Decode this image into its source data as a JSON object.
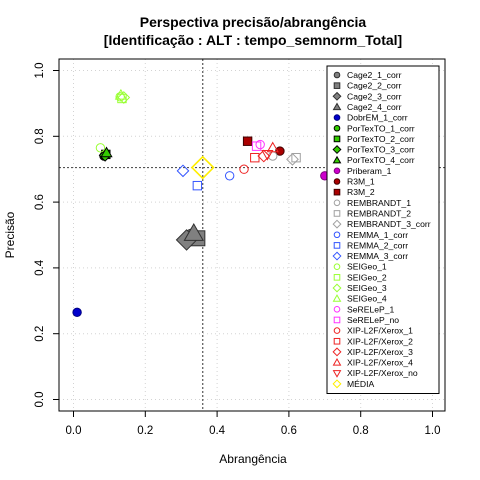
{
  "chart_data": {
    "type": "scatter",
    "title": "Perspectiva precisão/abrangência",
    "subtitle": "[Identificação : ALT : tempo_semnorm_Total]",
    "xlabel": "Abrangência",
    "ylabel": "Precisão",
    "xlim": [
      0,
      1
    ],
    "ylim": [
      0,
      1
    ],
    "x_ticks": [
      "0.0",
      "0.2",
      "0.4",
      "0.6",
      "0.8",
      "1.0"
    ],
    "y_ticks": [
      "0.0",
      "0.2",
      "0.4",
      "0.6",
      "0.8",
      "1.0"
    ],
    "grid": true,
    "legend_position": "top-right",
    "reference_lines": {
      "vertical_x": 0.36,
      "horizontal_y": 0.705
    },
    "series": [
      {
        "name": "Cage2_1_corr",
        "marker": "circle",
        "fill": "#808080",
        "stroke": "#303030",
        "points": [
          [
            0.33,
            0.495
          ]
        ]
      },
      {
        "name": "Cage2_2_corr",
        "marker": "square",
        "fill": "#808080",
        "stroke": "#303030",
        "points": [
          [
            0.345,
            0.49
          ]
        ]
      },
      {
        "name": "Cage2_3_corr",
        "marker": "diamond",
        "fill": "#808080",
        "stroke": "#303030",
        "points": [
          [
            0.315,
            0.485
          ]
        ]
      },
      {
        "name": "Cage2_4_corr",
        "marker": "triangle",
        "fill": "#808080",
        "stroke": "#303030",
        "points": [
          [
            0.335,
            0.505
          ]
        ]
      },
      {
        "name": "DobrEM_1_corr",
        "marker": "circle",
        "fill": "#0000cc",
        "stroke": "#000080",
        "points": [
          [
            0.01,
            0.265
          ]
        ]
      },
      {
        "name": "PorTexTO_1_corr",
        "marker": "circle",
        "fill": "#33cc00",
        "stroke": "#000000",
        "points": [
          [
            0.085,
            0.74
          ]
        ]
      },
      {
        "name": "PorTexTO_2_corr",
        "marker": "square",
        "fill": "#33cc00",
        "stroke": "#000000",
        "points": [
          [
            0.09,
            0.745
          ]
        ]
      },
      {
        "name": "PorTexTO_3_corr",
        "marker": "diamond",
        "fill": "#33cc00",
        "stroke": "#000000",
        "points": [
          [
            0.088,
            0.742
          ]
        ]
      },
      {
        "name": "PorTexTO_4_corr",
        "marker": "triangle",
        "fill": "#33cc00",
        "stroke": "#000000",
        "points": [
          [
            0.092,
            0.75
          ]
        ]
      },
      {
        "name": "Priberam_1",
        "marker": "circle",
        "fill": "#cc00cc",
        "stroke": "#800080",
        "points": [
          [
            0.7,
            0.68
          ]
        ]
      },
      {
        "name": "R3M_1",
        "marker": "circle",
        "fill": "#aa0000",
        "stroke": "#400000",
        "points": [
          [
            0.575,
            0.755
          ]
        ]
      },
      {
        "name": "R3M_2",
        "marker": "square",
        "fill": "#aa0000",
        "stroke": "#400000",
        "points": [
          [
            0.485,
            0.785
          ]
        ]
      },
      {
        "name": "REMBRANDT_1",
        "marker": "open-circle",
        "stroke": "#a0a0a0",
        "points": [
          [
            0.555,
            0.74
          ]
        ]
      },
      {
        "name": "REMBRANDT_2",
        "marker": "open-square",
        "stroke": "#a0a0a0",
        "points": [
          [
            0.62,
            0.735
          ]
        ]
      },
      {
        "name": "REMBRANDT_3_corr",
        "marker": "open-diamond",
        "stroke": "#a0a0a0",
        "points": [
          [
            0.61,
            0.73
          ]
        ]
      },
      {
        "name": "REMMA_1_corr",
        "marker": "open-circle",
        "stroke": "#3355ff",
        "points": [
          [
            0.435,
            0.68
          ]
        ]
      },
      {
        "name": "REMMA_2_corr",
        "marker": "open-square",
        "stroke": "#3355ff",
        "points": [
          [
            0.345,
            0.65
          ]
        ]
      },
      {
        "name": "REMMA_3_corr",
        "marker": "open-diamond",
        "stroke": "#3355ff",
        "points": [
          [
            0.305,
            0.695
          ]
        ]
      },
      {
        "name": "SEIGeo_1",
        "marker": "open-circle",
        "stroke": "#99ff33",
        "points": [
          [
            0.075,
            0.765
          ],
          [
            0.13,
            0.92
          ]
        ]
      },
      {
        "name": "SEIGeo_2",
        "marker": "open-square",
        "stroke": "#99ff33",
        "points": [
          [
            0.135,
            0.915
          ]
        ]
      },
      {
        "name": "SEIGeo_3",
        "marker": "open-diamond",
        "stroke": "#99ff33",
        "points": [
          [
            0.14,
            0.918
          ]
        ]
      },
      {
        "name": "SEIGeo_4",
        "marker": "open-triangle",
        "stroke": "#99ff33",
        "points": [
          [
            0.132,
            0.925
          ]
        ]
      },
      {
        "name": "SeRELeP_1",
        "marker": "open-circle",
        "stroke": "#ff33ff",
        "points": [
          [
            0.52,
            0.775
          ]
        ]
      },
      {
        "name": "SeRELeP_no",
        "marker": "open-square",
        "stroke": "#ff33ff",
        "points": [
          [
            0.51,
            0.77
          ]
        ]
      },
      {
        "name": "XIP-L2F/Xerox_1",
        "marker": "open-circle",
        "stroke": "#ee2222",
        "points": [
          [
            0.475,
            0.7
          ]
        ]
      },
      {
        "name": "XIP-L2F/Xerox_2",
        "marker": "open-square",
        "stroke": "#ee2222",
        "points": [
          [
            0.505,
            0.735
          ]
        ]
      },
      {
        "name": "XIP-L2F/Xerox_3",
        "marker": "open-diamond",
        "stroke": "#ee2222",
        "points": [
          [
            0.53,
            0.74
          ]
        ]
      },
      {
        "name": "XIP-L2F/Xerox_4",
        "marker": "open-triangle",
        "stroke": "#ee2222",
        "points": [
          [
            0.555,
            0.765
          ]
        ]
      },
      {
        "name": "XIP-L2F/Xerox_no",
        "marker": "open-triangle-down",
        "stroke": "#ee2222",
        "points": [
          [
            0.54,
            0.745
          ]
        ]
      },
      {
        "name": "MÉDIA",
        "marker": "open-diamond",
        "stroke": "#ffee00",
        "big": true,
        "points": [
          [
            0.36,
            0.705
          ]
        ]
      }
    ]
  }
}
